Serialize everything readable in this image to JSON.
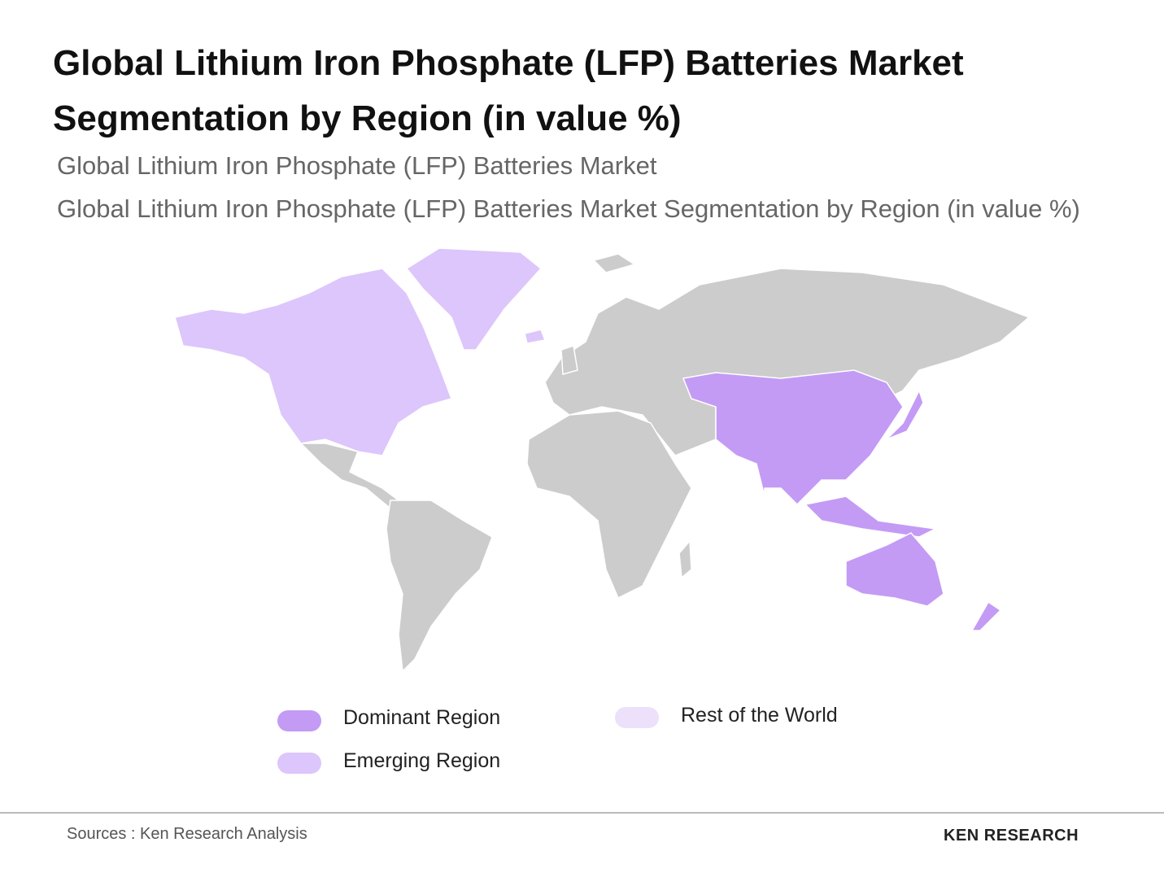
{
  "header": {
    "title": "Global Lithium Iron Phosphate (LFP) Batteries Market Segmentation by Region (in value %)",
    "subtitle_lines": [
      "Global Lithium Iron Phosphate (LFP) Batteries Market",
      "Global Lithium Iron Phosphate (LFP) Batteries Market Segmentation by Region (in value %)"
    ]
  },
  "legend": [
    {
      "label": "Dominant Region",
      "color": "#c39bf5"
    },
    {
      "label": "Emerging Region",
      "color": "#dcc6fb"
    },
    {
      "label": "Rest of the World",
      "color": "#ece0fb"
    }
  ],
  "footer": {
    "source": "Sources : Ken Research Analysis",
    "logo": "KEN RESEARCH"
  }
}
